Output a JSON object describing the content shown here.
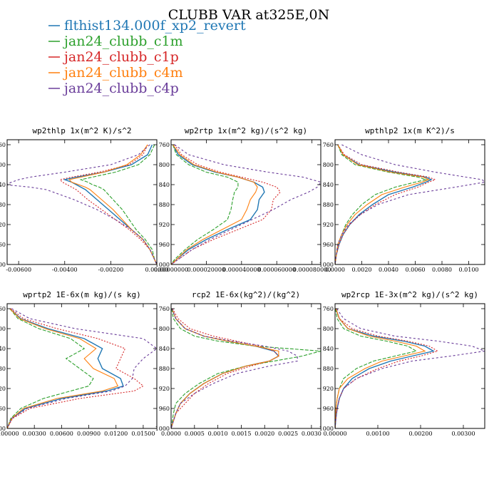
{
  "figure_title": "CLUBB VAR at325E,0N",
  "legend": [
    {
      "name": "flthist134.000f_xp2_revert",
      "color": "#1f77b4"
    },
    {
      "name": "jan24_clubb_c1m",
      "color": "#2ca02c"
    },
    {
      "name": "jan24_clubb_c1p",
      "color": "#d62728"
    },
    {
      "name": "jan24_clubb_c4m",
      "color": "#ff7f0e"
    },
    {
      "name": "jan24_clubb_c4p",
      "color": "#6a3d9a"
    }
  ],
  "chart_data": [
    {
      "type": "line",
      "title": "wp2thlp   1x(m^2 K)/s^2",
      "xlim": [
        -0.0065,
        0.0
      ],
      "xticks": [
        -0.006,
        -0.004,
        -0.002,
        0.0
      ],
      "xtick_labels": [
        "-0.00600",
        "-0.00400",
        "-0.00200",
        "0.00000"
      ],
      "ylim": [
        1000,
        750
      ],
      "yticks": [
        760,
        800,
        840,
        880,
        920,
        960,
        1000
      ],
      "y": [
        760,
        780,
        800,
        815,
        825,
        830,
        835,
        840,
        845,
        850,
        870,
        890,
        910,
        930,
        950,
        970,
        990,
        1000
      ],
      "series": [
        {
          "name": "flthist134.000f_xp2_revert",
          "values": [
            -0.0002,
            -0.0004,
            -0.0011,
            -0.0023,
            -0.0035,
            -0.004,
            -0.0037,
            -0.0035,
            -0.0033,
            -0.0031,
            -0.0026,
            -0.0021,
            -0.0016,
            -0.0011,
            -0.0006,
            -0.0003,
            -0.0001,
            0.0
          ]
        },
        {
          "name": "jan24_clubb_c1m",
          "values": [
            -0.0001,
            -0.0003,
            -0.0008,
            -0.0018,
            -0.0028,
            -0.0033,
            -0.003,
            -0.0028,
            -0.0025,
            -0.0023,
            -0.0019,
            -0.0015,
            -0.0012,
            -0.0009,
            -0.0005,
            -0.0002,
            -0.0001,
            0.0
          ]
        },
        {
          "name": "jan24_clubb_c1p",
          "values": [
            -0.0004,
            -0.0006,
            -0.0012,
            -0.0025,
            -0.0037,
            -0.0042,
            -0.0041,
            -0.0039,
            -0.0037,
            -0.0035,
            -0.003,
            -0.0024,
            -0.0018,
            -0.0012,
            -0.0007,
            -0.0003,
            -0.0001,
            0.0
          ]
        },
        {
          "name": "jan24_clubb_c4m",
          "values": [
            -0.0004,
            -0.0007,
            -0.0013,
            -0.0023,
            -0.0033,
            -0.0038,
            -0.0037,
            -0.0034,
            -0.0031,
            -0.0029,
            -0.0024,
            -0.0019,
            -0.0015,
            -0.0011,
            -0.0006,
            -0.0003,
            -0.0001,
            0.0
          ]
        },
        {
          "name": "jan24_clubb_c4p",
          "values": [
            -0.0003,
            -0.0008,
            -0.002,
            -0.004,
            -0.0055,
            -0.006,
            -0.0063,
            -0.0066,
            -0.0055,
            -0.0048,
            -0.0036,
            -0.0026,
            -0.0018,
            -0.0011,
            -0.0006,
            -0.0003,
            -0.0001,
            0.0
          ]
        }
      ]
    },
    {
      "type": "line",
      "title": "wp2rtp   1x(m^2 kg)/(s^2 kg)",
      "xlim": [
        0.0,
        8.5e-05
      ],
      "xticks": [
        0.0,
        2e-05,
        4e-05,
        6e-05,
        8e-05
      ],
      "xtick_labels": [
        "0.00000000",
        "0.000020000",
        "0.000040000",
        "0.000060000",
        "0.000080000"
      ],
      "ylim": [
        1000,
        750
      ],
      "yticks": [
        760,
        800,
        840,
        880,
        920,
        960,
        1000
      ],
      "y": [
        760,
        780,
        800,
        815,
        825,
        835,
        845,
        855,
        870,
        890,
        910,
        930,
        950,
        970,
        990,
        1000
      ],
      "series": [
        {
          "name": "flthist134.000f_xp2_revert",
          "values": [
            1e-06,
            4e-06,
            1.2e-05,
            2.5e-05,
            3.8e-05,
            4.7e-05,
            5.2e-05,
            5.3e-05,
            5e-05,
            4.9e-05,
            4.5e-05,
            3.2e-05,
            2e-05,
            1e-05,
            3e-06,
            0.0
          ]
        },
        {
          "name": "jan24_clubb_c1m",
          "values": [
            1e-06,
            3e-06,
            1e-05,
            2e-05,
            3.2e-05,
            3.8e-05,
            3.8e-05,
            3.6e-05,
            3.5e-05,
            3.4e-05,
            3.2e-05,
            2.4e-05,
            1.5e-05,
            8e-06,
            2e-06,
            0.0
          ]
        },
        {
          "name": "jan24_clubb_c1p",
          "values": [
            2e-06,
            6e-06,
            1.5e-05,
            2.8e-05,
            4e-05,
            5.2e-05,
            6e-05,
            6.2e-05,
            5.8e-05,
            5.7e-05,
            5.2e-05,
            3.8e-05,
            2.4e-05,
            1.2e-05,
            4e-06,
            0.0
          ]
        },
        {
          "name": "jan24_clubb_c4m",
          "values": [
            1e-06,
            5e-06,
            1.3e-05,
            2.6e-05,
            3.8e-05,
            4.7e-05,
            4.9e-05,
            4.8e-05,
            4.5e-05,
            4.3e-05,
            4e-05,
            2.9e-05,
            1.8e-05,
            9e-06,
            3e-06,
            0.0
          ]
        },
        {
          "name": "jan24_clubb_c4p",
          "values": [
            2e-06,
            1e-05,
            3e-05,
            5.5e-05,
            7.5e-05,
            8.5e-05,
            8.3e-05,
            7.8e-05,
            6.8e-05,
            5.8e-05,
            4.6e-05,
            3.4e-05,
            2.2e-05,
            1.2e-05,
            4e-06,
            0.0
          ]
        }
      ]
    },
    {
      "type": "line",
      "title": "wpthlp2   1x(m K^2)/s",
      "xlim": [
        0.0,
        0.0112
      ],
      "xticks": [
        0.0,
        0.002,
        0.004,
        0.006,
        0.008,
        0.01
      ],
      "xtick_labels": [
        "0.0000",
        "0.0020",
        "0.0040",
        "0.0060",
        "0.0080",
        "0.0100"
      ],
      "ylim": [
        1000,
        750
      ],
      "yticks": [
        760,
        800,
        840,
        880,
        920,
        960,
        1000
      ],
      "y": [
        760,
        780,
        800,
        815,
        825,
        830,
        835,
        845,
        860,
        880,
        900,
        920,
        940,
        960,
        980,
        1000
      ],
      "series": [
        {
          "name": "flthist134.000f_xp2_revert",
          "values": [
            0.0002,
            0.0006,
            0.0018,
            0.0045,
            0.0068,
            0.0072,
            0.0068,
            0.0058,
            0.004,
            0.0028,
            0.0018,
            0.0011,
            0.0006,
            0.0003,
            0.0001,
            0.0
          ]
        },
        {
          "name": "jan24_clubb_c1m",
          "values": [
            0.0002,
            0.0005,
            0.0015,
            0.004,
            0.0062,
            0.0068,
            0.006,
            0.0045,
            0.003,
            0.002,
            0.0013,
            0.0008,
            0.0005,
            0.0002,
            0.0001,
            0.0
          ]
        },
        {
          "name": "jan24_clubb_c1p",
          "values": [
            0.0002,
            0.0007,
            0.002,
            0.0048,
            0.007,
            0.0075,
            0.007,
            0.0062,
            0.0045,
            0.003,
            0.0019,
            0.0011,
            0.0006,
            0.0003,
            0.0001,
            0.0
          ]
        },
        {
          "name": "jan24_clubb_c4m",
          "values": [
            0.0002,
            0.0006,
            0.0017,
            0.0042,
            0.0066,
            0.007,
            0.0065,
            0.0052,
            0.0035,
            0.0024,
            0.0015,
            0.0009,
            0.0005,
            0.0002,
            0.0001,
            0.0
          ]
        },
        {
          "name": "jan24_clubb_c4p",
          "values": [
            0.0005,
            0.002,
            0.0045,
            0.0075,
            0.0098,
            0.011,
            0.0112,
            0.009,
            0.0055,
            0.0032,
            0.0019,
            0.001,
            0.0005,
            0.0002,
            0.0001,
            0.0
          ]
        }
      ]
    },
    {
      "type": "line",
      "title": "wprtp2   1E-6x(m kg)/(s kg)",
      "xlim": [
        0.0,
        0.0165
      ],
      "xticks": [
        0.0,
        0.003,
        0.006,
        0.009,
        0.012,
        0.015
      ],
      "xtick_labels": [
        "0.00000",
        "0.00300",
        "0.00600",
        "0.00900",
        "0.01200",
        "0.01500"
      ],
      "ylim": [
        1000,
        750
      ],
      "yticks": [
        760,
        800,
        840,
        880,
        920,
        960,
        1000
      ],
      "y": [
        760,
        780,
        800,
        820,
        840,
        860,
        880,
        900,
        915,
        925,
        940,
        960,
        980,
        1000
      ],
      "series": [
        {
          "name": "flthist134.000f_xp2_revert",
          "values": [
            0.0003,
            0.0015,
            0.0045,
            0.0085,
            0.0105,
            0.01,
            0.0105,
            0.0125,
            0.0128,
            0.011,
            0.006,
            0.002,
            0.0005,
            0.0
          ]
        },
        {
          "name": "jan24_clubb_c1m",
          "values": [
            0.0003,
            0.0012,
            0.0035,
            0.007,
            0.0085,
            0.0065,
            0.008,
            0.0095,
            0.009,
            0.007,
            0.004,
            0.0015,
            0.0004,
            0.0
          ]
        },
        {
          "name": "jan24_clubb_c1p",
          "values": [
            0.0004,
            0.0018,
            0.0055,
            0.01,
            0.013,
            0.0125,
            0.012,
            0.014,
            0.015,
            0.014,
            0.008,
            0.0025,
            0.0006,
            0.0
          ]
        },
        {
          "name": "jan24_clubb_c4m",
          "values": [
            0.0003,
            0.0014,
            0.0042,
            0.008,
            0.0098,
            0.0085,
            0.0095,
            0.0118,
            0.0122,
            0.0105,
            0.0055,
            0.0018,
            0.0005,
            0.0
          ]
        },
        {
          "name": "jan24_clubb_c4p",
          "values": [
            0.0005,
            0.0025,
            0.0075,
            0.015,
            0.0165,
            0.015,
            0.014,
            0.0138,
            0.013,
            0.0115,
            0.0065,
            0.0022,
            0.0005,
            0.0
          ]
        }
      ]
    },
    {
      "type": "line",
      "title": "rcp2   1E-6x(kg^2)/(kg^2)",
      "xlim": [
        0.0,
        0.0032
      ],
      "xticks": [
        0.0,
        0.0005,
        0.001,
        0.0015,
        0.002,
        0.0025,
        0.003
      ],
      "xtick_labels": [
        "0.0000",
        "0.0005",
        "0.0010",
        "0.0015",
        "0.0020",
        "0.0025",
        "0.0030"
      ],
      "ylim": [
        1000,
        750
      ],
      "yticks": [
        760,
        800,
        840,
        880,
        920,
        960,
        1000
      ],
      "y": [
        760,
        780,
        800,
        815,
        825,
        835,
        845,
        855,
        865,
        875,
        890,
        910,
        930,
        950,
        970,
        1000
      ],
      "series": [
        {
          "name": "flthist134.000f_xp2_revert",
          "values": [
            2e-05,
            0.0001,
            0.0003,
            0.0007,
            0.0012,
            0.0018,
            0.0022,
            0.0023,
            0.0021,
            0.0016,
            0.0011,
            0.0007,
            0.0004,
            0.0002,
            0.0001,
            0.0
          ]
        },
        {
          "name": "jan24_clubb_c1m",
          "values": [
            1e-05,
            5e-05,
            0.0002,
            0.0005,
            0.001,
            0.0018,
            0.0032,
            0.0028,
            0.0022,
            0.0016,
            0.001,
            0.0006,
            0.0003,
            0.0001,
            5e-05,
            0.0
          ]
        },
        {
          "name": "jan24_clubb_c1p",
          "values": [
            3e-05,
            0.00015,
            0.0004,
            0.0009,
            0.0014,
            0.0019,
            0.0022,
            0.0023,
            0.0021,
            0.0017,
            0.0012,
            0.0008,
            0.0005,
            0.0003,
            0.0001,
            0.0
          ]
        },
        {
          "name": "jan24_clubb_c4m",
          "values": [
            2e-05,
            0.0001,
            0.0003,
            0.0007,
            0.0012,
            0.0018,
            0.0023,
            0.0023,
            0.0021,
            0.0016,
            0.0011,
            0.0007,
            0.0004,
            0.0002,
            0.0001,
            0.0
          ]
        },
        {
          "name": "jan24_clubb_c4p",
          "values": [
            2e-05,
            0.0001,
            0.0003,
            0.0007,
            0.0013,
            0.002,
            0.0025,
            0.0027,
            0.0027,
            0.0021,
            0.0014,
            0.0009,
            0.0005,
            0.0002,
            0.0001,
            0.0
          ]
        }
      ]
    },
    {
      "type": "line",
      "title": "wp2rcp   1E-3x(m^2 kg)/(s^2 kg)",
      "xlim": [
        0.0,
        0.0035
      ],
      "xticks": [
        0.0,
        0.001,
        0.002,
        0.003
      ],
      "xtick_labels": [
        "0.00000",
        "0.00100",
        "0.00200",
        "0.00300"
      ],
      "ylim": [
        1000,
        750
      ],
      "yticks": [
        760,
        800,
        840,
        880,
        920,
        960,
        1000
      ],
      "y": [
        760,
        780,
        800,
        815,
        825,
        835,
        845,
        855,
        865,
        880,
        900,
        920,
        940,
        960,
        980,
        1000
      ],
      "series": [
        {
          "name": "flthist134.000f_xp2_revert",
          "values": [
            2e-05,
            0.0001,
            0.0003,
            0.0009,
            0.0016,
            0.0021,
            0.0023,
            0.0018,
            0.0013,
            0.0008,
            0.0004,
            0.0002,
            0.0001,
            5e-05,
            2e-05,
            0.0
          ]
        },
        {
          "name": "jan24_clubb_c1m",
          "values": [
            1e-05,
            5e-05,
            0.0002,
            0.0006,
            0.0012,
            0.0017,
            0.0019,
            0.0014,
            0.0009,
            0.0005,
            0.0002,
            0.0001,
            5e-05,
            2e-05,
            1e-05,
            0.0
          ]
        },
        {
          "name": "jan24_clubb_c1p",
          "values": [
            2e-05,
            0.0001,
            0.0004,
            0.001,
            0.0017,
            0.0022,
            0.0024,
            0.002,
            0.0015,
            0.001,
            0.0005,
            0.0002,
            0.0001,
            5e-05,
            2e-05,
            0.0
          ]
        },
        {
          "name": "jan24_clubb_c4m",
          "values": [
            2e-05,
            0.0001,
            0.0003,
            0.0008,
            0.0014,
            0.0019,
            0.0021,
            0.0016,
            0.0011,
            0.0007,
            0.0003,
            0.0001,
            5e-05,
            2e-05,
            1e-05,
            0.0
          ]
        },
        {
          "name": "jan24_clubb_c4p",
          "values": [
            4e-05,
            0.0002,
            0.0006,
            0.0014,
            0.0024,
            0.0032,
            0.0035,
            0.0027,
            0.0018,
            0.0011,
            0.0005,
            0.0002,
            0.0001,
            5e-05,
            2e-05,
            0.0
          ]
        }
      ]
    }
  ]
}
